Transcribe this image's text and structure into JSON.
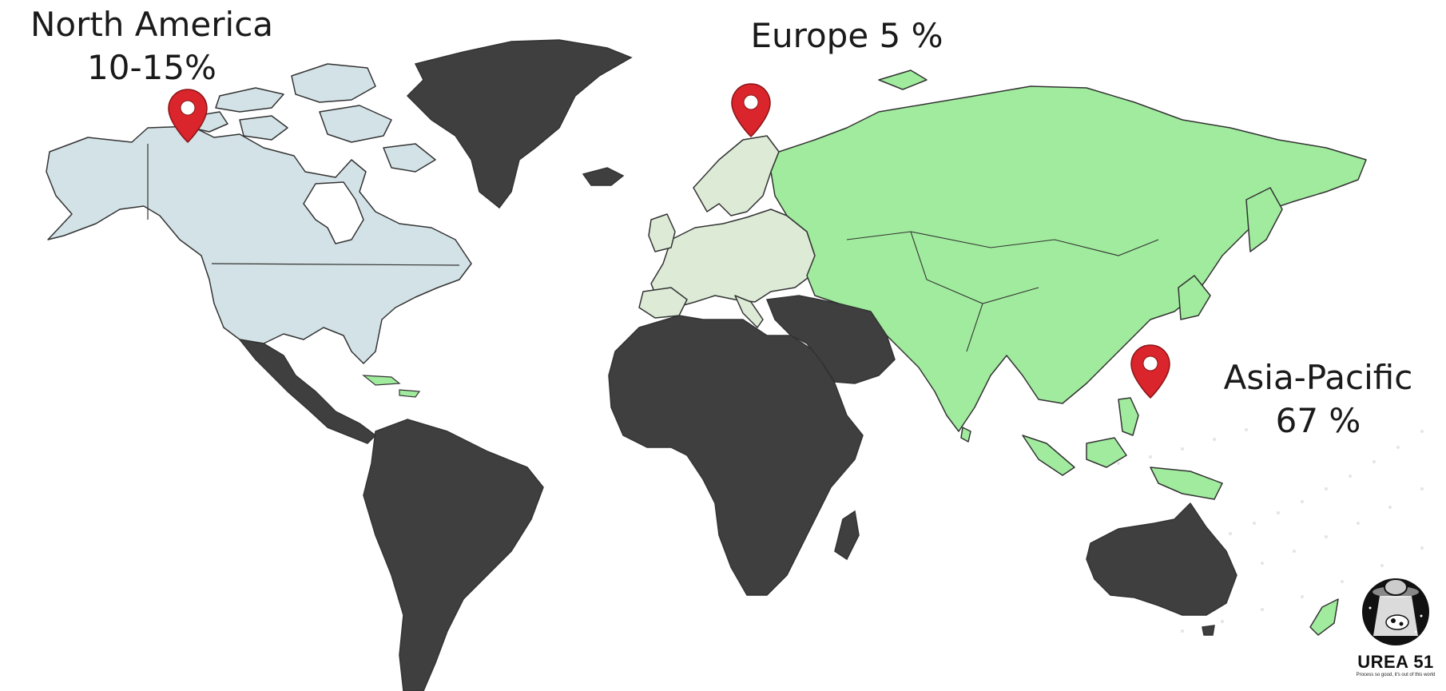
{
  "regions": {
    "north_america": {
      "name": "North America",
      "share": "10-15%"
    },
    "europe": {
      "label": "Europe 5 %"
    },
    "asia_pacific": {
      "name": "Asia-Pacific",
      "share": "67 %"
    }
  },
  "logo": {
    "brand": "UREA 51",
    "tagline": "Process so good, it's out of this world"
  },
  "colors": {
    "north_america_fill": "#d3e2e6",
    "europe_fill": "#dcead6",
    "asia_fill": "#a0eb9d",
    "rest_fill": "#3f3f3f",
    "pin": "#d9252b"
  },
  "icons": {
    "pin": "map-pin-icon",
    "logo": "ufo-cow-logo"
  }
}
